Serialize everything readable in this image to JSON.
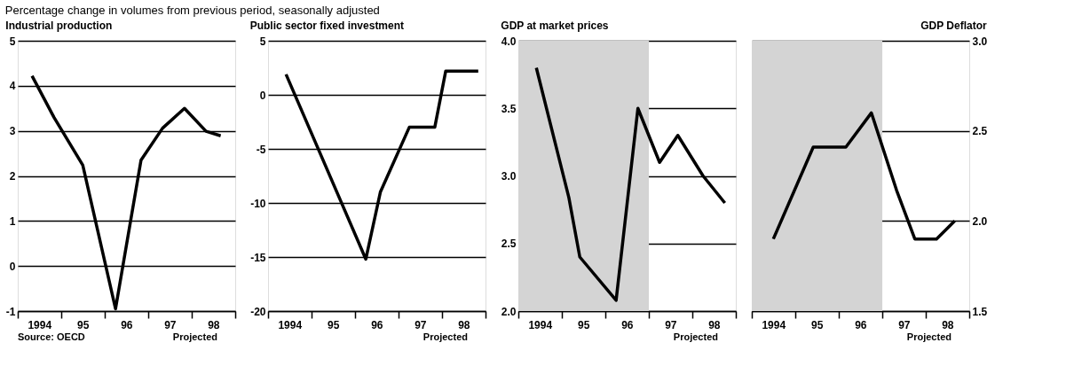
{
  "chart_data": [
    {
      "type": "line",
      "title": "Percentage change in volumes from previous period, seasonally adjusted",
      "subtitle": "Industrial production",
      "grid": "y",
      "annotations": [
        "Source: OECD",
        "Projected"
      ],
      "xlim": [
        "1994",
        "1999"
      ],
      "xticks": [
        {
          "value": "1994",
          "label": null
        },
        {
          "value": "1994-07",
          "label": "1994"
        },
        {
          "value": "1995",
          "label": null
        },
        {
          "value": "1995-07",
          "label": "95"
        },
        {
          "value": "1996",
          "label": null
        },
        {
          "value": "1996-07",
          "label": "96"
        },
        {
          "value": "1997",
          "label": null
        },
        {
          "value": "1997-07",
          "label": "97"
        },
        {
          "value": "1998",
          "label": null
        },
        {
          "value": "1998-07",
          "label": "98"
        },
        {
          "value": "1999",
          "label": null
        }
      ],
      "ylim": [
        -1,
        5
      ],
      "yticks": [
        -1,
        0,
        1,
        2,
        3,
        4,
        5
      ],
      "series": [
        {
          "color": "#000000",
          "x": [
            "1994-05",
            "1994-11",
            "1995-07",
            "1996-04",
            "1996-11",
            "1997-05",
            "1997-11",
            "1998-05",
            "1998-09"
          ],
          "values": [
            4.22,
            3.3,
            2.24,
            -0.95,
            2.35,
            3.06,
            3.5,
            2.99,
            2.89
          ]
        }
      ]
    },
    {
      "type": "line",
      "title": "Public sector fixed investment",
      "grid": "y",
      "annotations": [
        "Projected"
      ],
      "xlim": [
        "1994",
        "1999"
      ],
      "xticks": [
        {
          "value": "1994",
          "label": null
        },
        {
          "value": "1994-07",
          "label": "1994"
        },
        {
          "value": "1995",
          "label": null
        },
        {
          "value": "1995-07",
          "label": "95"
        },
        {
          "value": "1996",
          "label": null
        },
        {
          "value": "1996-07",
          "label": "96"
        },
        {
          "value": "1997",
          "label": null
        },
        {
          "value": "1997-07",
          "label": "97"
        },
        {
          "value": "1998",
          "label": null
        },
        {
          "value": "1998-07",
          "label": "98"
        },
        {
          "value": "1999",
          "label": null
        }
      ],
      "ylim": [
        -20,
        5
      ],
      "yticks": [
        -20,
        -15,
        -10,
        -5,
        0,
        5
      ],
      "series": [
        {
          "color": "#000000",
          "x": [
            "1994-06",
            "1996-04",
            "1996-08",
            "1997-04",
            "1997-11",
            "1998-02",
            "1998-11"
          ],
          "values": [
            1.9,
            -15.2,
            -9,
            -3,
            -3,
            2.2,
            2.2
          ]
        }
      ]
    },
    {
      "type": "line",
      "title": "GDP at market prices",
      "grid": "y",
      "annotations": [
        "Projected"
      ],
      "bands": [
        {
          "axis": "x",
          "from": "1994",
          "to": "1997",
          "color": "#d4d4d4"
        }
      ],
      "xlim": [
        "1994",
        "1999"
      ],
      "xticks": [
        {
          "value": "1994",
          "label": null
        },
        {
          "value": "1994-07",
          "label": "1994"
        },
        {
          "value": "1995",
          "label": null
        },
        {
          "value": "1995-07",
          "label": "95"
        },
        {
          "value": "1996",
          "label": null
        },
        {
          "value": "1996-07",
          "label": "96"
        },
        {
          "value": "1997",
          "label": null
        },
        {
          "value": "1997-07",
          "label": "97"
        },
        {
          "value": "1998",
          "label": null
        },
        {
          "value": "1998-07",
          "label": "98"
        },
        {
          "value": "1999",
          "label": null
        }
      ],
      "ylim": [
        2,
        4
      ],
      "yticks": [
        {
          "value": 2,
          "label": "2.0"
        },
        2.5,
        {
          "value": 3,
          "label": "3.0"
        },
        3.5,
        {
          "value": 4,
          "label": "4.0"
        }
      ],
      "series": [
        {
          "color": "#000000",
          "x": [
            "1994-06",
            "1995-03",
            "1995-06",
            "1996-04",
            "1996-10",
            "1997-04",
            "1997-09",
            "1998-04",
            "1998-10"
          ],
          "values": [
            3.8,
            2.84,
            2.4,
            2.08,
            3.5,
            3.1,
            3.3,
            3.0,
            2.8
          ]
        }
      ]
    },
    {
      "type": "line",
      "title": "GDP Deflator",
      "grid": "y",
      "annotations": [
        "Projected"
      ],
      "bands": [
        {
          "axis": "x",
          "from": "1994",
          "to": "1997",
          "color": "#d4d4d4"
        }
      ],
      "xlim": [
        "1994",
        "1999"
      ],
      "xticks": [
        {
          "value": "1994",
          "label": null
        },
        {
          "value": "1994-07",
          "label": "1994"
        },
        {
          "value": "1995",
          "label": null
        },
        {
          "value": "1995-07",
          "label": "95"
        },
        {
          "value": "1996",
          "label": null
        },
        {
          "value": "1996-07",
          "label": "96"
        },
        {
          "value": "1997",
          "label": null
        },
        {
          "value": "1997-07",
          "label": "97"
        },
        {
          "value": "1998",
          "label": null
        },
        {
          "value": "1998-07",
          "label": "98"
        },
        {
          "value": "1999",
          "label": null
        }
      ],
      "y2lim": [
        1.5,
        3
      ],
      "y2ticks": [
        1.5,
        {
          "value": 2,
          "label": "2.0"
        },
        2.5,
        {
          "value": 3,
          "label": "3.0"
        }
      ],
      "series": [
        {
          "color": "#000000",
          "axis": "y2",
          "x": [
            "1994-07",
            "1995-06",
            "1996-03",
            "1996-10",
            "1997-05",
            "1997-10",
            "1998-04",
            "1998-09"
          ],
          "values": [
            1.9,
            2.41,
            2.41,
            2.6,
            2.17,
            1.9,
            1.9,
            2.0
          ]
        }
      ]
    }
  ]
}
